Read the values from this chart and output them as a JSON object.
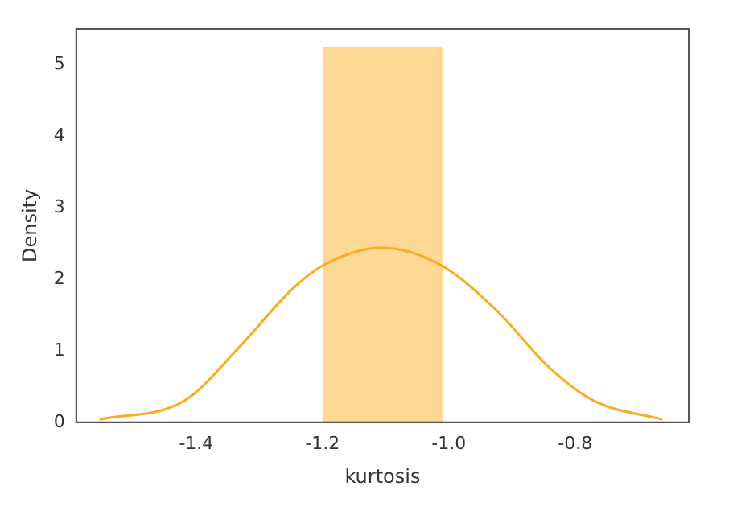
{
  "chart_data": {
    "type": "histogram",
    "xlabel": "kurtosis",
    "ylabel": "Density",
    "bins": [
      -1.2,
      -1.01
    ],
    "values": [
      5.25
    ],
    "color": "#fdd995",
    "series": [
      {
        "type": "line",
        "color": "#fbab1c",
        "x": [
          -1.553,
          -1.419,
          -1.332,
          -1.247,
          -1.198,
          -1.107,
          -1.013,
          -0.925,
          -0.839,
          -0.77,
          -0.662
        ],
        "values": [
          0.04,
          0.3,
          1.05,
          1.87,
          2.2,
          2.44,
          2.2,
          1.57,
          0.75,
          0.3,
          0.04
        ]
      }
    ],
    "xlim": [
      -1.59,
      -0.62
    ],
    "xticks": [
      -1.4,
      -1.2,
      {
        "value": -1.0,
        "label": "-1.0"
      },
      -0.8
    ],
    "ylim": [
      0,
      5.5
    ],
    "yticks": [
      0,
      1,
      2,
      3,
      4,
      5
    ],
    "grid": false,
    "legend": false
  }
}
